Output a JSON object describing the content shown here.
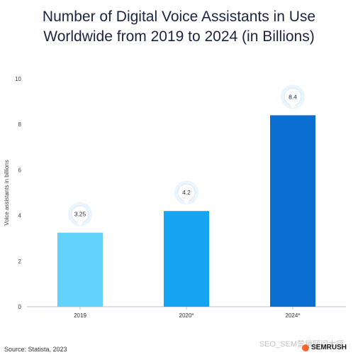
{
  "chart_data": {
    "type": "bar",
    "title_lines": [
      "Number of Digital Voice Assistants in Use",
      "Worldwide from 2019 to 2024 (in Billions)"
    ],
    "categories": [
      "2019",
      "2020*",
      "2024*"
    ],
    "values": [
      3.25,
      4.2,
      8.4
    ],
    "data_labels": [
      "3.25",
      "4.2",
      "8.4"
    ],
    "ylabel": "Voice assistants in billions",
    "xlabel": "",
    "ylim": [
      0,
      10
    ],
    "yticks": [
      "0",
      "2",
      "4",
      "6",
      "8",
      "10"
    ],
    "grid": false,
    "legend": "none",
    "colors": [
      "#62d2fc",
      "#16a3f2",
      "#0a6fd1"
    ]
  },
  "footer": {
    "source": "Source: Statista, 2023",
    "brand": "SEMRUSH",
    "watermark": "SEO_SEM营销顾问大师"
  }
}
